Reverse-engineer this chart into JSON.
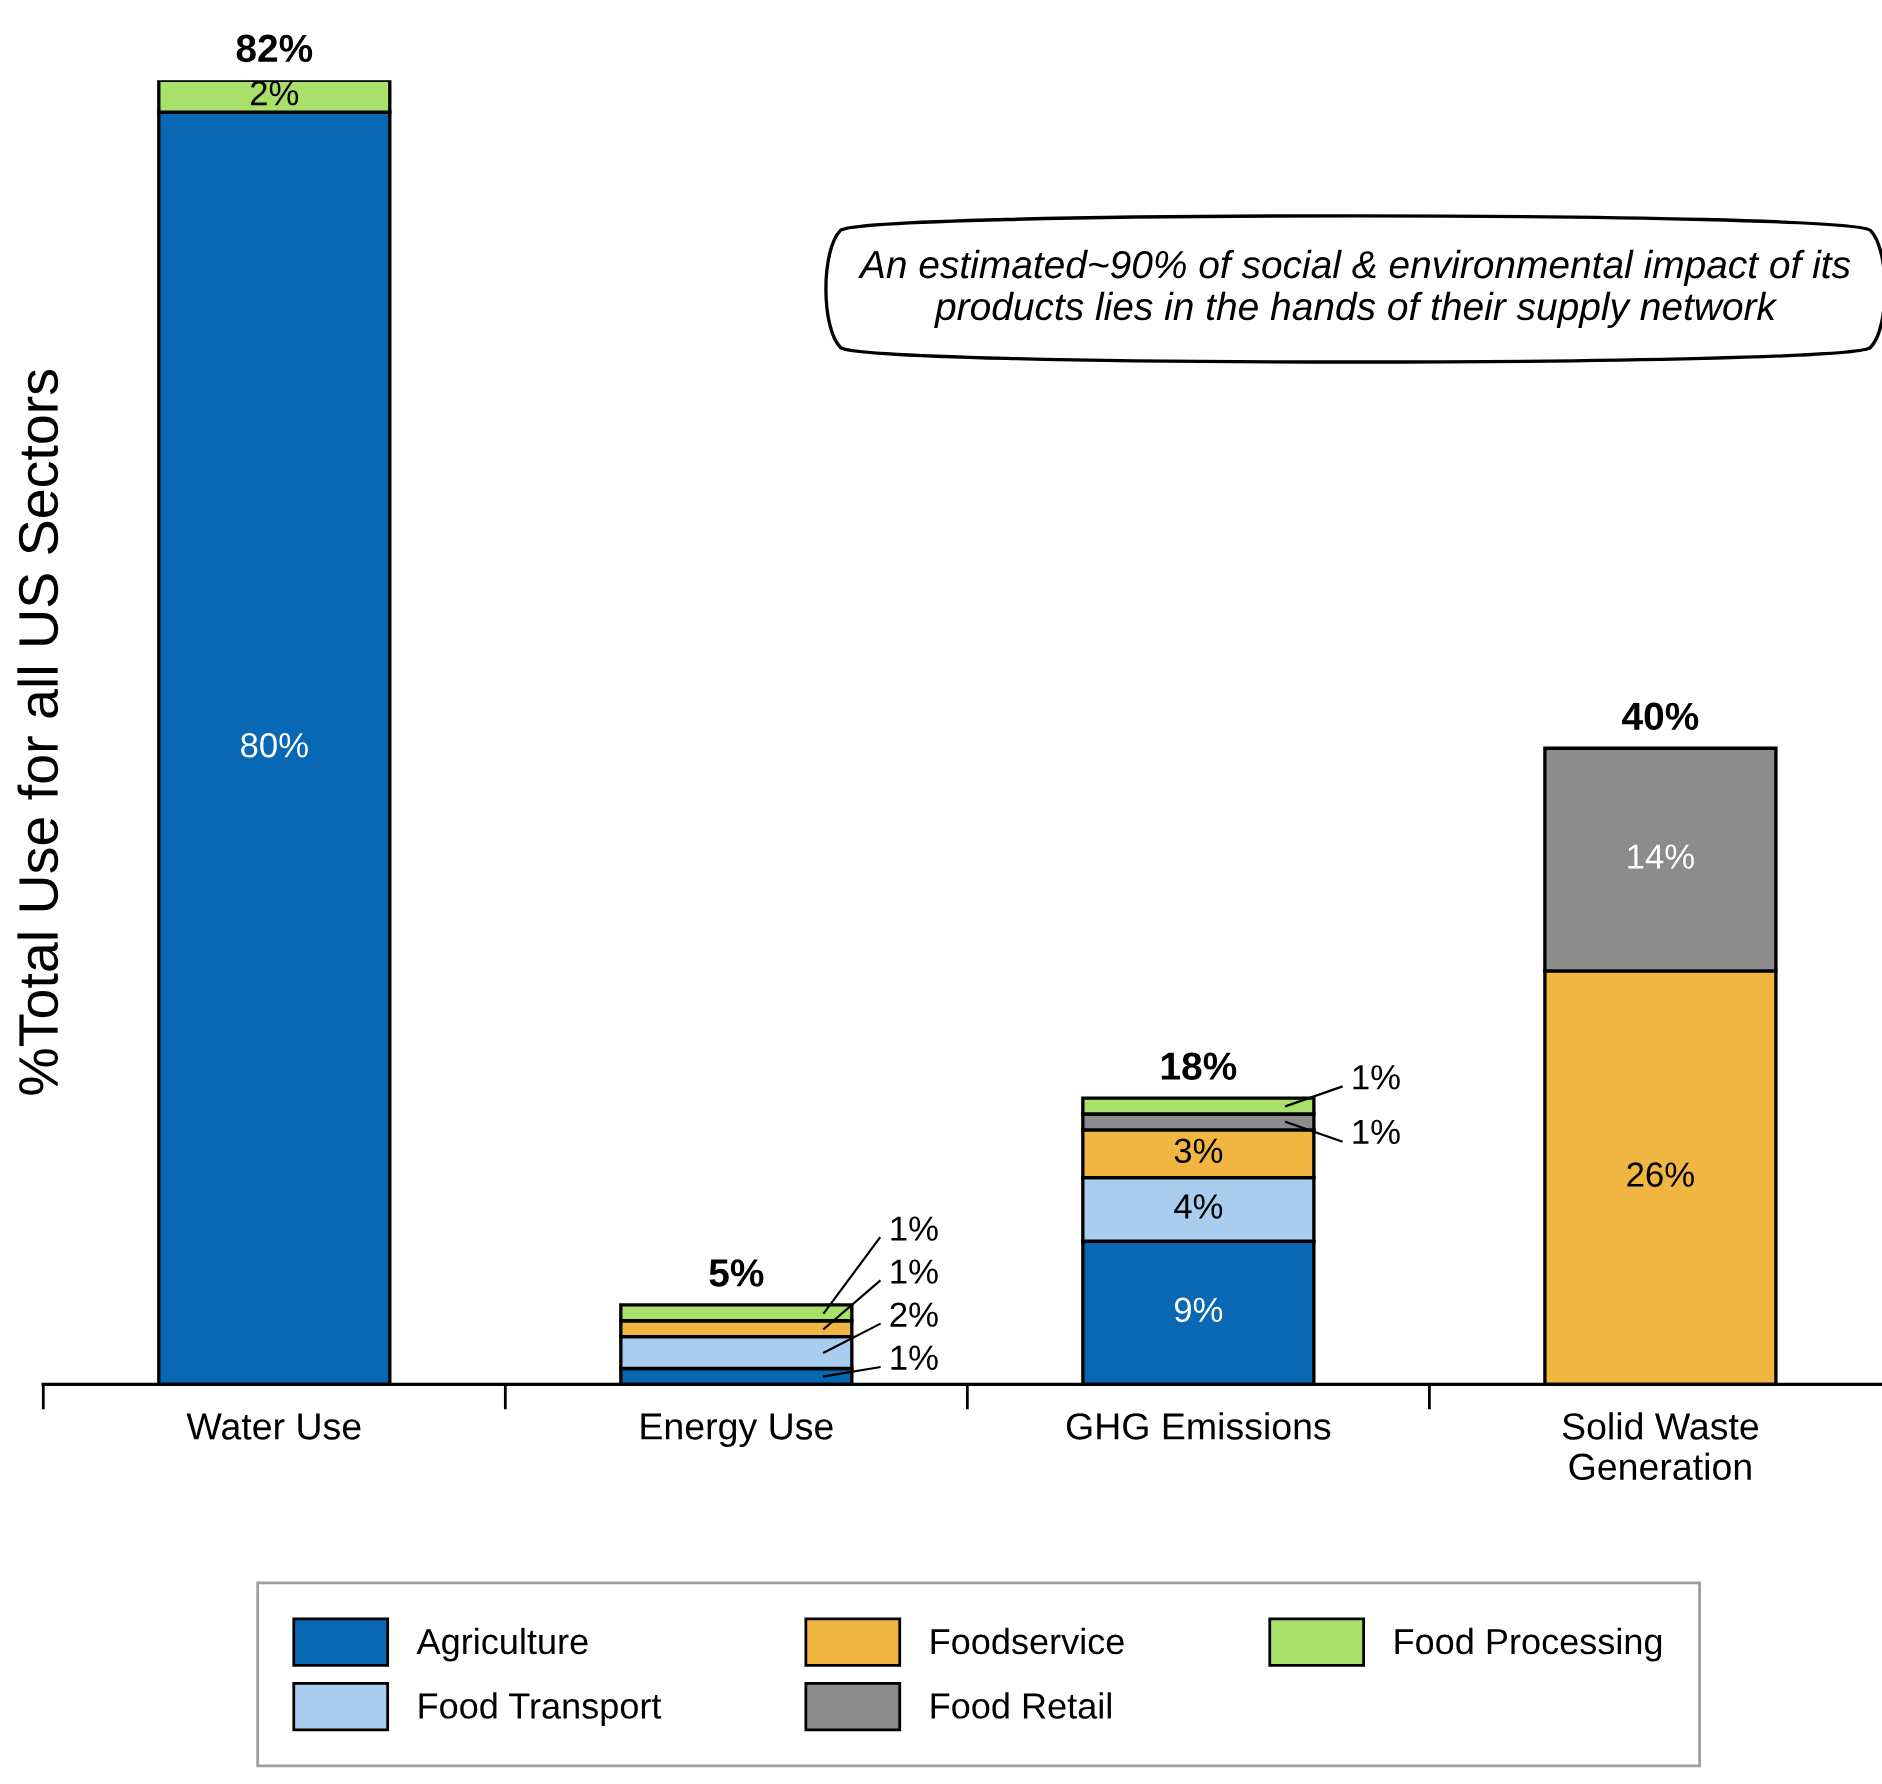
{
  "chart_data": {
    "type": "bar",
    "stacked": true,
    "ylabel": "%Total Use for all US Sectors",
    "categories": [
      "Water Use",
      "Energy Use",
      "GHG Emissions",
      "Solid Waste Generation"
    ],
    "series": [
      {
        "name": "Agriculture",
        "color": "#0868b4",
        "values": [
          80,
          1,
          9,
          null
        ],
        "value_labels": [
          "80%",
          "1%",
          "9%",
          null
        ]
      },
      {
        "name": "Food Transport",
        "color": "#a9cdef",
        "values": [
          null,
          2,
          4,
          null
        ],
        "value_labels": [
          null,
          "2%",
          "4%",
          null
        ]
      },
      {
        "name": "Foodservice",
        "color": "#f0b641",
        "values": [
          null,
          1,
          3,
          26
        ],
        "value_labels": [
          null,
          "1%",
          "3%",
          "26%"
        ]
      },
      {
        "name": "Food Retail",
        "color": "#8c8c8c",
        "values": [
          null,
          null,
          1,
          14
        ],
        "value_labels": [
          null,
          null,
          "1%",
          "14%"
        ]
      },
      {
        "name": "Food Processing",
        "color": "#a9df6b",
        "values": [
          2,
          1,
          1,
          null
        ],
        "value_labels": [
          "2%",
          "1%",
          "1%",
          null
        ]
      }
    ],
    "totals": [
      "82%",
      "5%",
      "18%",
      "40%"
    ],
    "ylim": [
      0,
      82
    ],
    "tick_labels": "x",
    "grid": false,
    "legend": "bottom",
    "annotations": [
      "An estimated~90% of social & environmental impact of its products lies in the hands of their supply network"
    ]
  }
}
